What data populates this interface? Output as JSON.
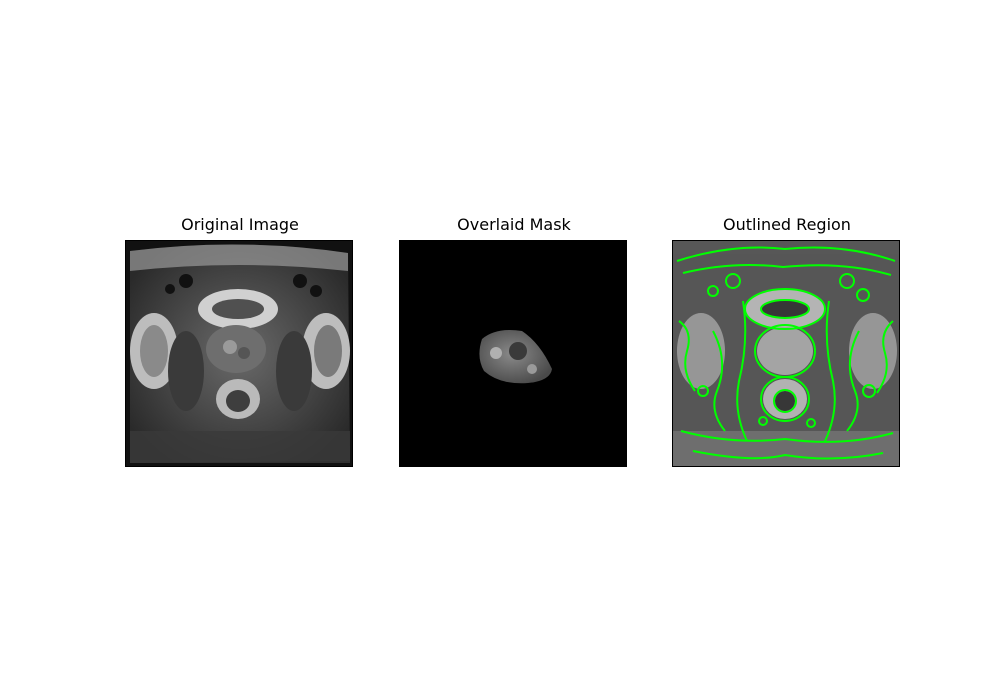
{
  "figure": {
    "panels": [
      {
        "title": "Original Image",
        "content": "axial pelvic MRI slice (grayscale)"
      },
      {
        "title": "Overlaid Mask",
        "content": "masked prostate region on black background"
      },
      {
        "title": "Outlined Region",
        "content": "edge-enhanced MRI with green contour outlines"
      }
    ],
    "colors": {
      "background": "#ffffff",
      "outline": "#00ff00",
      "image_bg": "#000000"
    }
  }
}
